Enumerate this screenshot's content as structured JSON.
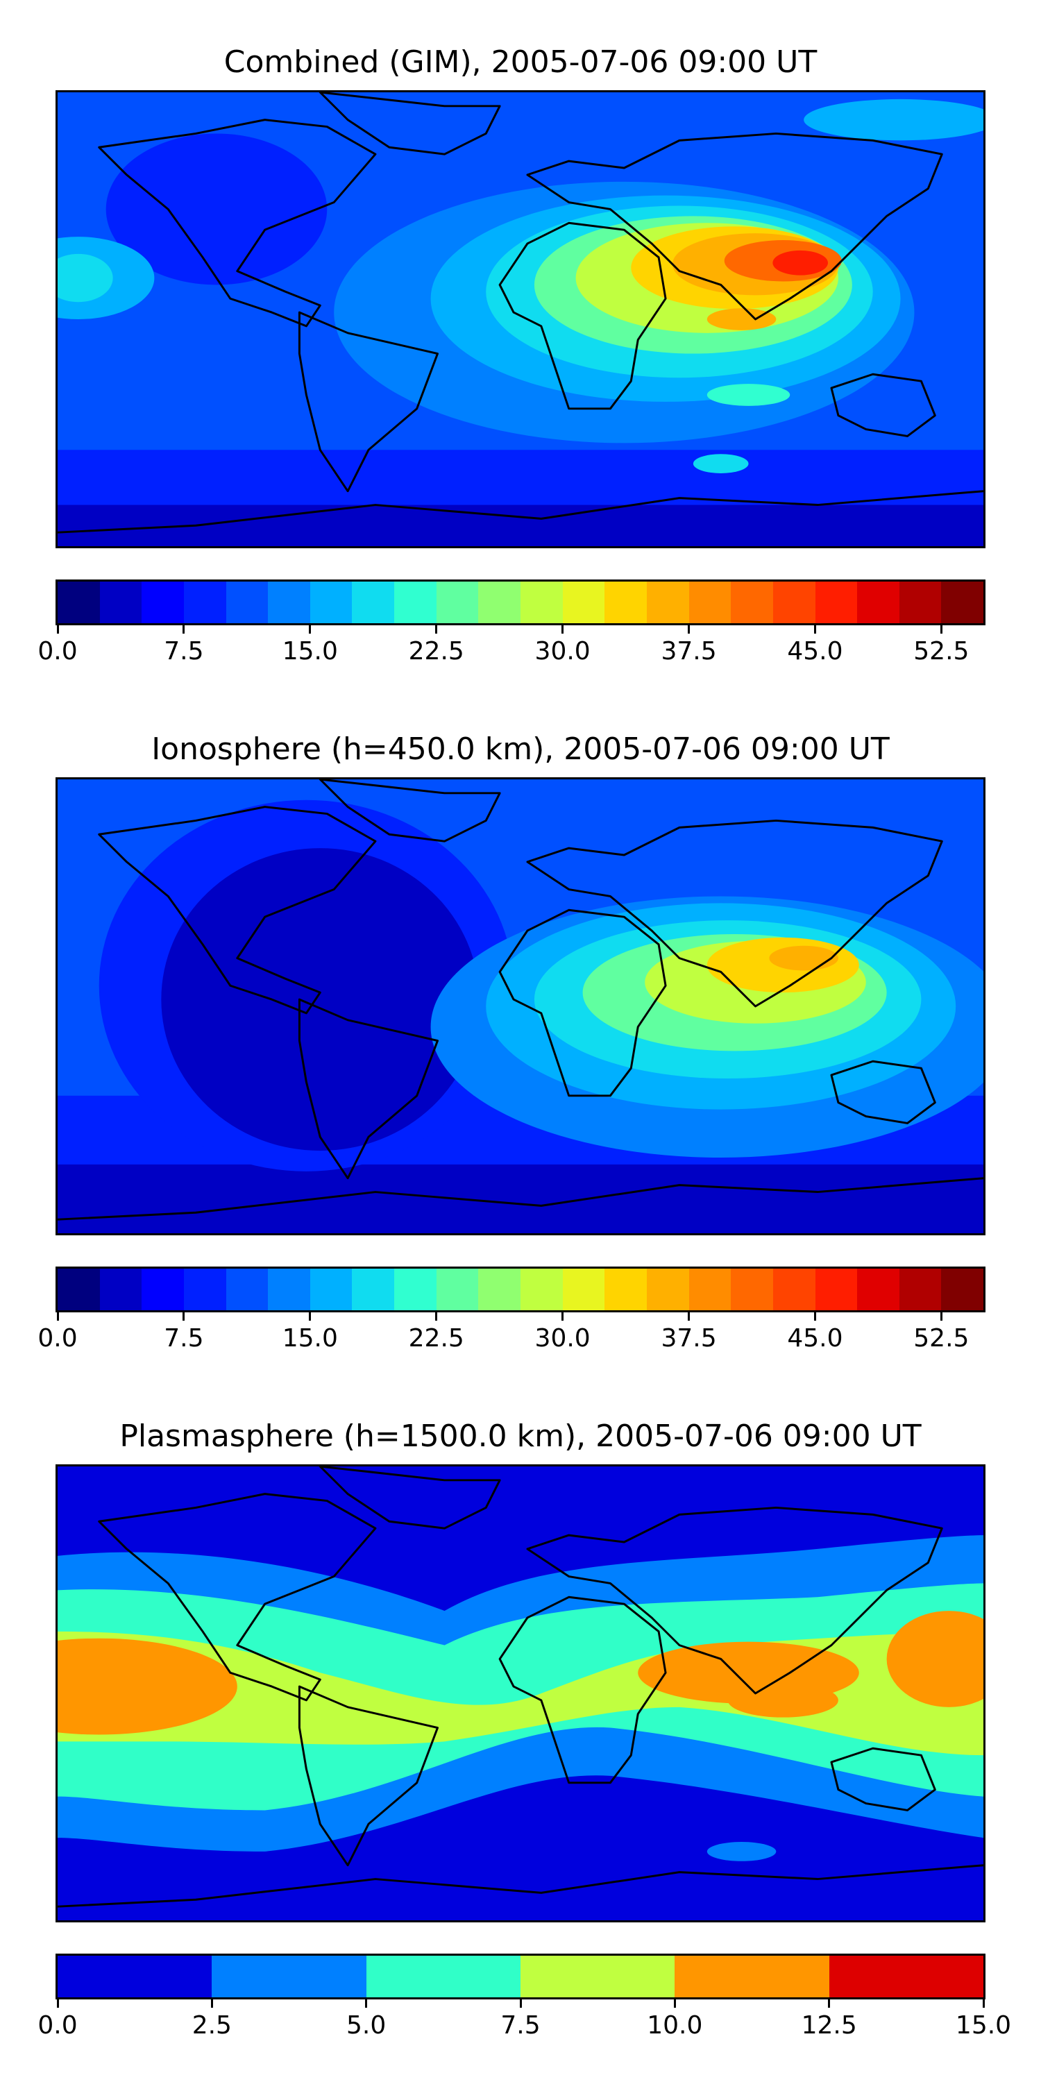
{
  "panels": [
    {
      "title": "Combined (GIM), 2005-07-06 09:00 UT",
      "colorbar": {
        "min": 0.0,
        "max": 55.0,
        "levels": 22,
        "tick_labels": [
          "0.0",
          "7.5",
          "15.0",
          "22.5",
          "30.0",
          "37.5",
          "45.0",
          "52.5"
        ],
        "tick_values": [
          0.0,
          7.5,
          15.0,
          22.5,
          30.0,
          37.5,
          45.0,
          52.5
        ]
      }
    },
    {
      "title": "Ionosphere  (h=450.0 km), 2005-07-06 09:00 UT",
      "colorbar": {
        "min": 0.0,
        "max": 55.0,
        "levels": 22,
        "tick_labels": [
          "0.0",
          "7.5",
          "15.0",
          "22.5",
          "30.0",
          "37.5",
          "45.0",
          "52.5"
        ],
        "tick_values": [
          0.0,
          7.5,
          15.0,
          22.5,
          30.0,
          37.5,
          45.0,
          52.5
        ]
      }
    },
    {
      "title": "Plasmasphere (h=1500.0 km), 2005-07-06 09:00 UT",
      "colorbar": {
        "min": 0.0,
        "max": 15.0,
        "levels": 6,
        "tick_labels": [
          "0.0",
          "2.5",
          "5.0",
          "7.5",
          "10.0",
          "12.5",
          "15.0"
        ],
        "tick_values": [
          0.0,
          2.5,
          5.0,
          7.5,
          10.0,
          12.5,
          15.0
        ]
      }
    }
  ],
  "colormap": "jet",
  "colormap_22": [
    "#00007f",
    "#0000c4",
    "#0000ff",
    "#0020ff",
    "#0050ff",
    "#0080ff",
    "#00b0ff",
    "#10dcf0",
    "#30ffd0",
    "#60ffa0",
    "#90ff70",
    "#c0ff40",
    "#e8f520",
    "#ffd400",
    "#ffb000",
    "#ff8c00",
    "#ff6800",
    "#ff4400",
    "#ff1e00",
    "#e00000",
    "#b00000",
    "#800000"
  ],
  "colormap_6": [
    "#0000dd",
    "#0080ff",
    "#30ffc8",
    "#c0ff40",
    "#ff9600",
    "#dd0000"
  ]
}
